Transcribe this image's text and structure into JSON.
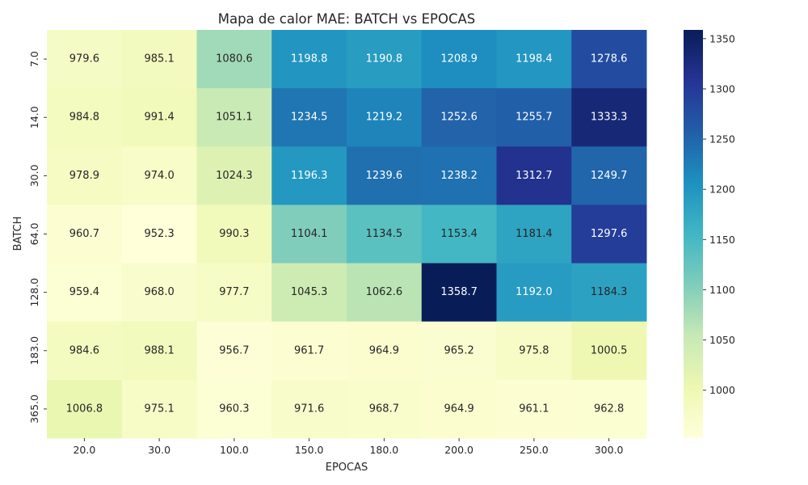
{
  "chart_data": {
    "type": "heatmap",
    "title": "Mapa de calor MAE: BATCH vs EPOCAS",
    "xlabel": "EPOCAS",
    "ylabel": "BATCH",
    "x_categories": [
      "20.0",
      "30.0",
      "100.0",
      "150.0",
      "180.0",
      "200.0",
      "250.0",
      "300.0"
    ],
    "y_categories": [
      "7.0",
      "14.0",
      "30.0",
      "64.0",
      "128.0",
      "183.0",
      "365.0"
    ],
    "values": [
      [
        979.6,
        985.1,
        1080.6,
        1198.8,
        1190.8,
        1208.9,
        1198.4,
        1278.6
      ],
      [
        984.8,
        991.4,
        1051.1,
        1234.5,
        1219.2,
        1252.6,
        1255.7,
        1333.3
      ],
      [
        978.9,
        974.0,
        1024.3,
        1196.3,
        1239.6,
        1238.2,
        1312.7,
        1249.7
      ],
      [
        960.7,
        952.3,
        990.3,
        1104.1,
        1134.5,
        1153.4,
        1181.4,
        1297.6
      ],
      [
        959.4,
        968.0,
        977.7,
        1045.3,
        1062.6,
        1358.7,
        1192.0,
        1184.3
      ],
      [
        984.6,
        988.1,
        956.7,
        961.7,
        964.9,
        965.2,
        975.8,
        1000.5
      ],
      [
        1006.8,
        975.1,
        960.3,
        971.6,
        968.7,
        964.9,
        961.1,
        962.8
      ]
    ],
    "value_format": "%.1f",
    "colormap": "YlGnBu",
    "colorbar": {
      "range": [
        952.3,
        1358.7
      ],
      "ticks": [
        1000,
        1050,
        1100,
        1150,
        1200,
        1250,
        1300,
        1350
      ]
    },
    "colormap_stops": [
      "#ffffd9",
      "#edf8b1",
      "#c7e9b4",
      "#7fcdbb",
      "#41b6c4",
      "#1d91c0",
      "#225ea8",
      "#253494",
      "#081d58"
    ]
  }
}
